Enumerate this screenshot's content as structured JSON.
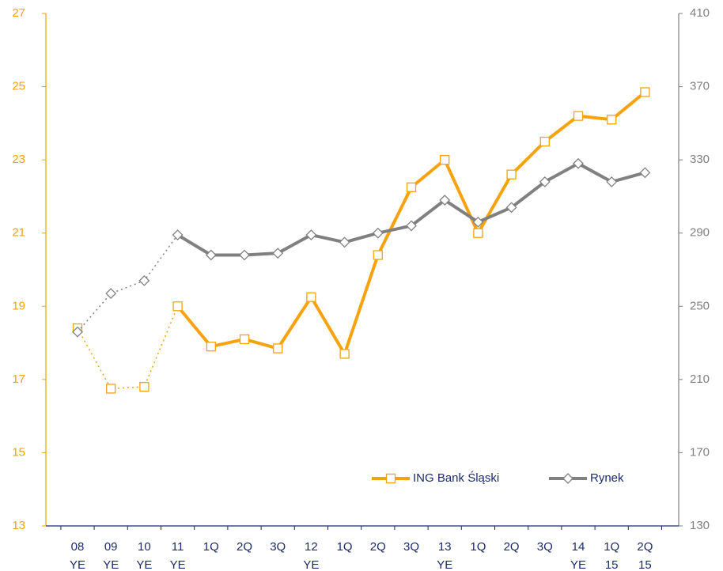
{
  "chart_data": {
    "type": "line",
    "categories": [
      [
        "08",
        "YE"
      ],
      [
        "09",
        "YE"
      ],
      [
        "10",
        "YE"
      ],
      [
        "11",
        "YE"
      ],
      [
        "1Q"
      ],
      [
        "2Q"
      ],
      [
        "3Q"
      ],
      [
        "12",
        "YE"
      ],
      [
        "1Q"
      ],
      [
        "2Q"
      ],
      [
        "3Q"
      ],
      [
        "13",
        "YE"
      ],
      [
        "1Q"
      ],
      [
        "2Q"
      ],
      [
        "3Q"
      ],
      [
        "14",
        "YE"
      ],
      [
        "1Q",
        "15"
      ],
      [
        "2Q",
        "15"
      ]
    ],
    "series": [
      {
        "name": "ING Bank Śląski",
        "color": "#f7a20e",
        "marker": "square",
        "axis": "y",
        "values": [
          18.4,
          16.75,
          16.8,
          19.0,
          17.9,
          18.1,
          17.85,
          19.25,
          17.7,
          20.4,
          22.25,
          23.0,
          21.0,
          22.6,
          23.5,
          24.2,
          24.1,
          24.85
        ]
      },
      {
        "name": "Rynek",
        "color": "#808080",
        "marker": "diamond",
        "axis": "y2",
        "values": [
          236,
          257,
          264,
          289,
          278,
          278,
          279,
          289,
          285,
          290,
          294,
          308,
          296,
          304,
          318,
          328,
          318,
          323
        ]
      }
    ],
    "dotted_through": 3,
    "ylim": [
      13,
      27
    ],
    "yticks": [
      13,
      15,
      17,
      19,
      21,
      23,
      25,
      27
    ],
    "y2lim": [
      130,
      410
    ],
    "y2ticks": [
      130,
      170,
      210,
      250,
      290,
      330,
      370,
      410
    ],
    "legend": "bottom-right"
  }
}
